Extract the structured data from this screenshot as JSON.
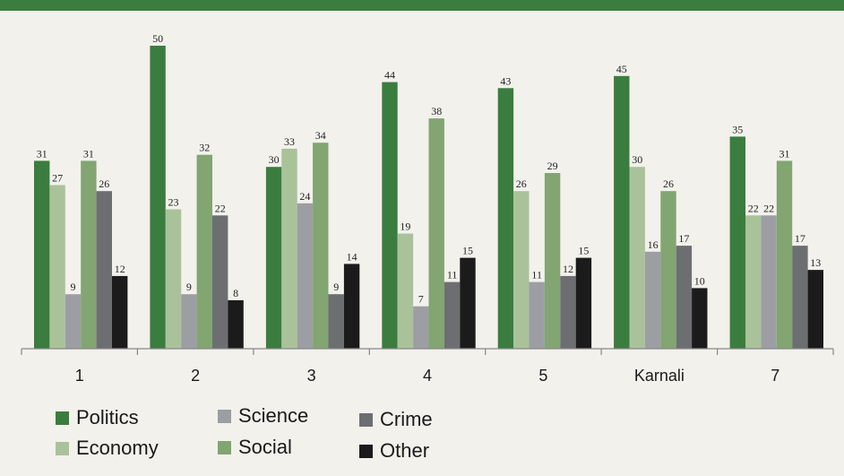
{
  "chart_data": {
    "type": "bar",
    "title": "",
    "xlabel": "",
    "ylabel": "",
    "categories": [
      "1",
      "2",
      "3",
      "4",
      "5",
      "Karnali",
      "7"
    ],
    "series": [
      {
        "name": "Politics",
        "color": "#3a7d3e",
        "values": [
          31,
          50,
          30,
          44,
          43,
          45,
          35
        ]
      },
      {
        "name": "Economy",
        "color": "#a9c29a",
        "values": [
          27,
          23,
          33,
          19,
          26,
          30,
          22
        ]
      },
      {
        "name": "Science",
        "color": "#9d9ea4",
        "values": [
          9,
          9,
          24,
          7,
          11,
          16,
          22
        ]
      },
      {
        "name": "Social",
        "color": "#82a572",
        "values": [
          31,
          32,
          34,
          38,
          29,
          26,
          31
        ]
      },
      {
        "name": "Crime",
        "color": "#6d6e72",
        "values": [
          26,
          22,
          9,
          11,
          12,
          17,
          17
        ]
      },
      {
        "name": "Other",
        "color": "#1c1b1c",
        "values": [
          12,
          8,
          14,
          15,
          15,
          10,
          13
        ]
      }
    ],
    "ylim": [
      0,
      52
    ],
    "grid": false,
    "legend_position": "bottom-left",
    "data_labels": true
  }
}
